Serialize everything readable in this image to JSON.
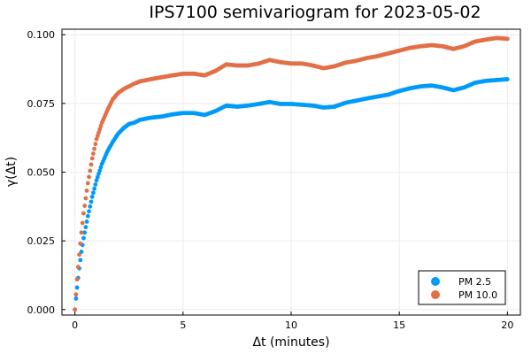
{
  "chart_data": {
    "type": "scatter",
    "title": "IPS7100 semivariogram for 2023-05-02",
    "xlabel": "Δt (minutes)",
    "ylabel": "γ(Δt)",
    "xlim": [
      -0.6,
      20.6
    ],
    "ylim": [
      -0.002,
      0.102
    ],
    "xticks": [
      0,
      5,
      10,
      15,
      20
    ],
    "xtick_labels": [
      "0",
      "5",
      "10",
      "15",
      "20"
    ],
    "yticks": [
      0.0,
      0.025,
      0.05,
      0.075,
      0.1
    ],
    "ytick_labels": [
      "0.000",
      "0.025",
      "0.050",
      "0.075",
      "0.100"
    ],
    "grid": true,
    "legend_position": "bottom-right",
    "series": [
      {
        "name": "PM 2.5",
        "color": "#009AF9",
        "points": [
          [
            0,
            0.0
          ],
          [
            0.1,
            0.008
          ],
          [
            0.2,
            0.015
          ],
          [
            0.3,
            0.021
          ],
          [
            0.4,
            0.026
          ],
          [
            0.6,
            0.034
          ],
          [
            0.8,
            0.041
          ],
          [
            1.0,
            0.047
          ],
          [
            1.25,
            0.053
          ],
          [
            1.5,
            0.0575
          ],
          [
            1.75,
            0.061
          ],
          [
            2.0,
            0.064
          ],
          [
            2.25,
            0.066
          ],
          [
            2.5,
            0.0675
          ],
          [
            2.75,
            0.068
          ],
          [
            3.0,
            0.069
          ],
          [
            3.5,
            0.0698
          ],
          [
            4.0,
            0.0702
          ],
          [
            4.5,
            0.071
          ],
          [
            5.0,
            0.0715
          ],
          [
            5.5,
            0.0715
          ],
          [
            6.0,
            0.0708
          ],
          [
            6.5,
            0.0722
          ],
          [
            7.0,
            0.0742
          ],
          [
            7.5,
            0.0738
          ],
          [
            8.0,
            0.0742
          ],
          [
            8.5,
            0.0748
          ],
          [
            9.0,
            0.0755
          ],
          [
            9.5,
            0.0748
          ],
          [
            10.0,
            0.0748
          ],
          [
            10.5,
            0.0745
          ],
          [
            11.0,
            0.0742
          ],
          [
            11.5,
            0.0735
          ],
          [
            12.0,
            0.0738
          ],
          [
            12.5,
            0.0752
          ],
          [
            13.0,
            0.076
          ],
          [
            13.5,
            0.0768
          ],
          [
            14.0,
            0.0775
          ],
          [
            14.5,
            0.0782
          ],
          [
            15.0,
            0.0795
          ],
          [
            15.5,
            0.0805
          ],
          [
            16.0,
            0.0812
          ],
          [
            16.5,
            0.0815
          ],
          [
            17.0,
            0.0808
          ],
          [
            17.5,
            0.0798
          ],
          [
            18.0,
            0.0808
          ],
          [
            18.5,
            0.0825
          ],
          [
            19.0,
            0.0832
          ],
          [
            19.5,
            0.0835
          ],
          [
            20.0,
            0.0838
          ]
        ]
      },
      {
        "name": "PM 10.0",
        "color": "#E26F46",
        "points": [
          [
            0,
            0.0
          ],
          [
            0.1,
            0.011
          ],
          [
            0.2,
            0.02
          ],
          [
            0.3,
            0.028
          ],
          [
            0.4,
            0.035
          ],
          [
            0.6,
            0.046
          ],
          [
            0.8,
            0.055
          ],
          [
            1.0,
            0.062
          ],
          [
            1.25,
            0.068
          ],
          [
            1.5,
            0.0725
          ],
          [
            1.75,
            0.0765
          ],
          [
            2.0,
            0.0788
          ],
          [
            2.25,
            0.0802
          ],
          [
            2.5,
            0.0812
          ],
          [
            2.75,
            0.0822
          ],
          [
            3.0,
            0.083
          ],
          [
            3.5,
            0.0838
          ],
          [
            4.0,
            0.0845
          ],
          [
            4.5,
            0.0852
          ],
          [
            5.0,
            0.0858
          ],
          [
            5.5,
            0.0858
          ],
          [
            6.0,
            0.0852
          ],
          [
            6.5,
            0.0868
          ],
          [
            7.0,
            0.0892
          ],
          [
            7.5,
            0.0888
          ],
          [
            8.0,
            0.0888
          ],
          [
            8.5,
            0.0895
          ],
          [
            9.0,
            0.0908
          ],
          [
            9.5,
            0.09
          ],
          [
            10.0,
            0.0895
          ],
          [
            10.5,
            0.0895
          ],
          [
            11.0,
            0.0888
          ],
          [
            11.5,
            0.0878
          ],
          [
            12.0,
            0.0885
          ],
          [
            12.5,
            0.0898
          ],
          [
            13.0,
            0.0905
          ],
          [
            13.5,
            0.0915
          ],
          [
            14.0,
            0.0922
          ],
          [
            14.5,
            0.0932
          ],
          [
            15.0,
            0.0942
          ],
          [
            15.5,
            0.0952
          ],
          [
            16.0,
            0.0958
          ],
          [
            16.5,
            0.0962
          ],
          [
            17.0,
            0.0958
          ],
          [
            17.5,
            0.0948
          ],
          [
            18.0,
            0.0958
          ],
          [
            18.5,
            0.0975
          ],
          [
            19.0,
            0.0982
          ],
          [
            19.5,
            0.0988
          ],
          [
            20.0,
            0.0985
          ]
        ]
      }
    ]
  }
}
